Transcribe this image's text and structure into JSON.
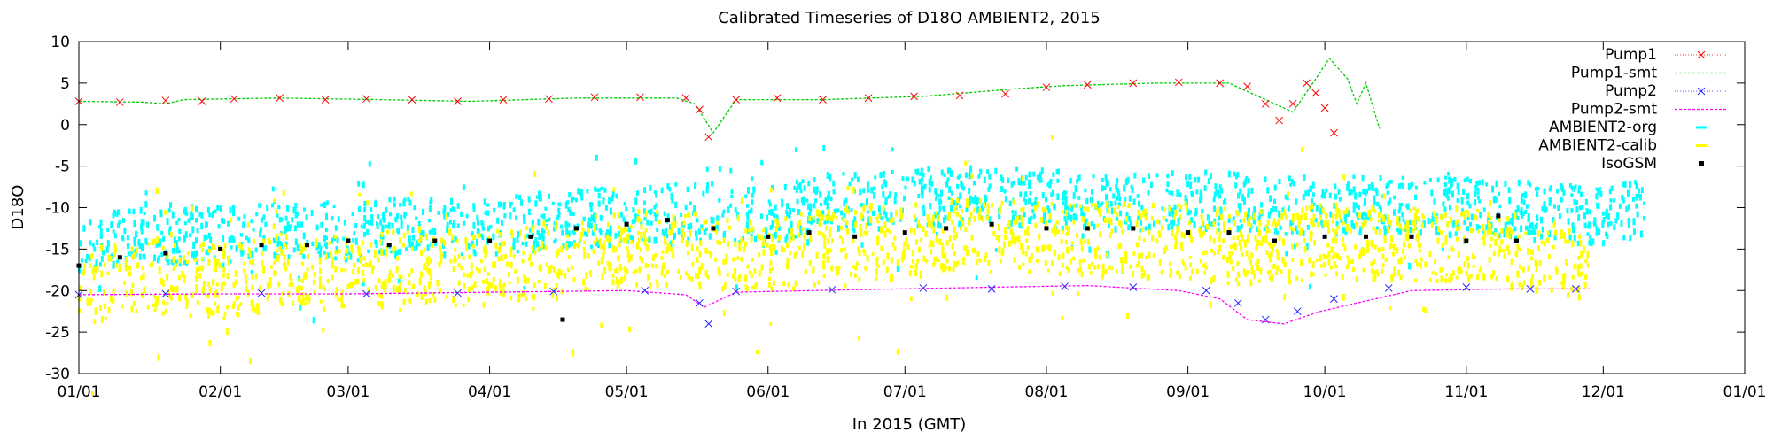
{
  "chart_data": {
    "type": "scatter",
    "title": "Calibrated Timeseries of D18O AMBIENT2, 2015",
    "xlabel": "In 2015 (GMT)",
    "ylabel": "D18O",
    "x_tick_labels": [
      "01/01",
      "02/01",
      "03/01",
      "04/01",
      "05/01",
      "06/01",
      "07/01",
      "08/01",
      "09/01",
      "10/01",
      "11/01",
      "12/01",
      "01/01"
    ],
    "x_tick_dates": [
      "2015-01-01",
      "2015-02-01",
      "2015-03-01",
      "2015-04-01",
      "2015-05-01",
      "2015-06-01",
      "2015-07-01",
      "2015-08-01",
      "2015-09-01",
      "2015-10-01",
      "2015-11-01",
      "2015-12-01",
      "2016-01-01"
    ],
    "xlim": [
      "2015-01-01",
      "2016-01-01"
    ],
    "ylim": [
      -30,
      10
    ],
    "y_ticks": [
      10,
      5,
      0,
      -5,
      -10,
      -15,
      -20,
      -25,
      -30
    ],
    "grid": false,
    "legend_position": "top-right",
    "series": [
      {
        "name": "Pump1",
        "color": "#ff0000",
        "marker": "x",
        "style": "points-errorbars",
        "points": [
          [
            "2015-01-01",
            2.8
          ],
          [
            "2015-01-10",
            2.7
          ],
          [
            "2015-01-20",
            2.9
          ],
          [
            "2015-01-28",
            2.8
          ],
          [
            "2015-02-04",
            3.1
          ],
          [
            "2015-02-14",
            3.2
          ],
          [
            "2015-02-24",
            3.0
          ],
          [
            "2015-03-05",
            3.1
          ],
          [
            "2015-03-15",
            3.0
          ],
          [
            "2015-03-25",
            2.8
          ],
          [
            "2015-04-04",
            3.0
          ],
          [
            "2015-04-14",
            3.1
          ],
          [
            "2015-04-24",
            3.3
          ],
          [
            "2015-05-04",
            3.3
          ],
          [
            "2015-05-14",
            3.2
          ],
          [
            "2015-05-17",
            1.8
          ],
          [
            "2015-05-19",
            -1.5
          ],
          [
            "2015-05-25",
            3.0
          ],
          [
            "2015-06-03",
            3.2
          ],
          [
            "2015-06-13",
            3.0
          ],
          [
            "2015-06-23",
            3.2
          ],
          [
            "2015-07-03",
            3.4
          ],
          [
            "2015-07-13",
            3.5
          ],
          [
            "2015-07-23",
            3.7
          ],
          [
            "2015-08-01",
            4.5
          ],
          [
            "2015-08-10",
            4.8
          ],
          [
            "2015-08-20",
            5.0
          ],
          [
            "2015-08-30",
            5.1
          ],
          [
            "2015-09-08",
            5.0
          ],
          [
            "2015-09-14",
            4.6
          ],
          [
            "2015-09-18",
            2.5
          ],
          [
            "2015-09-21",
            0.5
          ],
          [
            "2015-09-24",
            2.5
          ],
          [
            "2015-09-27",
            5.0
          ],
          [
            "2015-09-29",
            3.8
          ],
          [
            "2015-10-01",
            2.0
          ],
          [
            "2015-10-03",
            -1.0
          ]
        ]
      },
      {
        "name": "Pump1-smt",
        "color": "#00cc00",
        "marker": "none",
        "style": "dashed-line",
        "points": [
          [
            "2015-01-01",
            2.8
          ],
          [
            "2015-01-15",
            2.7
          ],
          [
            "2015-01-20",
            2.5
          ],
          [
            "2015-01-24",
            3.0
          ],
          [
            "2015-02-14",
            3.2
          ],
          [
            "2015-03-08",
            3.0
          ],
          [
            "2015-03-28",
            2.8
          ],
          [
            "2015-04-20",
            3.2
          ],
          [
            "2015-05-12",
            3.2
          ],
          [
            "2015-05-16",
            2.5
          ],
          [
            "2015-05-20",
            -1.0
          ],
          [
            "2015-05-25",
            3.0
          ],
          [
            "2015-06-13",
            3.0
          ],
          [
            "2015-07-05",
            3.4
          ],
          [
            "2015-07-25",
            4.3
          ],
          [
            "2015-08-05",
            4.7
          ],
          [
            "2015-08-25",
            5.0
          ],
          [
            "2015-09-10",
            5.0
          ],
          [
            "2015-09-18",
            3.0
          ],
          [
            "2015-09-24",
            1.5
          ],
          [
            "2015-09-29",
            5.5
          ],
          [
            "2015-10-02",
            8.0
          ],
          [
            "2015-10-06",
            5.5
          ],
          [
            "2015-10-08",
            2.5
          ],
          [
            "2015-10-10",
            5.0
          ],
          [
            "2015-10-13",
            -0.5
          ]
        ]
      },
      {
        "name": "Pump2",
        "color": "#2222ff",
        "marker": "x",
        "style": "points-errorbars",
        "points": [
          [
            "2015-01-01",
            -20.5
          ],
          [
            "2015-01-20",
            -20.4
          ],
          [
            "2015-02-10",
            -20.3
          ],
          [
            "2015-03-05",
            -20.4
          ],
          [
            "2015-03-25",
            -20.3
          ],
          [
            "2015-04-15",
            -20.1
          ],
          [
            "2015-05-05",
            -20.0
          ],
          [
            "2015-05-17",
            -21.5
          ],
          [
            "2015-05-19",
            -24.0
          ],
          [
            "2015-05-25",
            -20.1
          ],
          [
            "2015-06-15",
            -19.9
          ],
          [
            "2015-07-05",
            -19.7
          ],
          [
            "2015-07-20",
            -19.8
          ],
          [
            "2015-08-05",
            -19.5
          ],
          [
            "2015-08-20",
            -19.6
          ],
          [
            "2015-09-05",
            -20.0
          ],
          [
            "2015-09-12",
            -21.5
          ],
          [
            "2015-09-18",
            -23.5
          ],
          [
            "2015-09-25",
            -22.5
          ],
          [
            "2015-10-03",
            -21.0
          ],
          [
            "2015-10-15",
            -19.7
          ],
          [
            "2015-11-01",
            -19.6
          ],
          [
            "2015-11-15",
            -19.8
          ],
          [
            "2015-11-25",
            -19.8
          ]
        ]
      },
      {
        "name": "Pump2-smt",
        "color": "#ff00ff",
        "marker": "none",
        "style": "dashed-line",
        "points": [
          [
            "2015-01-01",
            -20.5
          ],
          [
            "2015-02-01",
            -20.4
          ],
          [
            "2015-03-01",
            -20.4
          ],
          [
            "2015-04-01",
            -20.2
          ],
          [
            "2015-05-01",
            -20.0
          ],
          [
            "2015-05-14",
            -20.5
          ],
          [
            "2015-05-18",
            -22.0
          ],
          [
            "2015-05-25",
            -20.2
          ],
          [
            "2015-06-20",
            -19.9
          ],
          [
            "2015-07-20",
            -19.6
          ],
          [
            "2015-08-10",
            -19.4
          ],
          [
            "2015-08-30",
            -20.0
          ],
          [
            "2015-09-08",
            -21.0
          ],
          [
            "2015-09-14",
            -23.5
          ],
          [
            "2015-09-22",
            -24.0
          ],
          [
            "2015-09-30",
            -22.5
          ],
          [
            "2015-10-08",
            -21.5
          ],
          [
            "2015-10-20",
            -20.0
          ],
          [
            "2015-11-10",
            -19.8
          ],
          [
            "2015-11-28",
            -19.8
          ]
        ]
      },
      {
        "name": "AMBIENT2-org",
        "color": "#00ffff",
        "marker": "dot",
        "style": "points",
        "points": [
          [
            "2015-01-01",
            -15.5
          ],
          [
            "2015-01-15",
            -13.0
          ],
          [
            "2015-02-01",
            -13.5
          ],
          [
            "2015-02-15",
            -12.5
          ],
          [
            "2015-03-01",
            -13.0
          ],
          [
            "2015-03-15",
            -12.0
          ],
          [
            "2015-04-01",
            -12.5
          ],
          [
            "2015-04-15",
            -11.5
          ],
          [
            "2015-05-01",
            -11.0
          ],
          [
            "2015-05-15",
            -10.5
          ],
          [
            "2015-06-01",
            -11.0
          ],
          [
            "2015-06-15",
            -9.5
          ],
          [
            "2015-07-01",
            -9.0
          ],
          [
            "2015-07-15",
            -8.5
          ],
          [
            "2015-08-01",
            -9.0
          ],
          [
            "2015-08-15",
            -9.5
          ],
          [
            "2015-09-01",
            -9.0
          ],
          [
            "2015-09-15",
            -9.5
          ],
          [
            "2015-10-01",
            -10.0
          ],
          [
            "2015-10-15",
            -9.5
          ],
          [
            "2015-11-01",
            -10.0
          ],
          [
            "2015-11-15",
            -10.5
          ],
          [
            "2015-12-01",
            -11.0
          ],
          [
            "2015-12-10",
            -10.0
          ]
        ]
      },
      {
        "name": "AMBIENT2-calib",
        "color": "#ffff00",
        "marker": "dot",
        "style": "points",
        "points": [
          [
            "2015-01-01",
            -20.0
          ],
          [
            "2015-01-15",
            -18.0
          ],
          [
            "2015-02-01",
            -19.0
          ],
          [
            "2015-02-15",
            -17.5
          ],
          [
            "2015-03-01",
            -18.0
          ],
          [
            "2015-03-15",
            -17.0
          ],
          [
            "2015-04-01",
            -17.5
          ],
          [
            "2015-04-15",
            -16.0
          ],
          [
            "2015-05-01",
            -15.0
          ],
          [
            "2015-05-15",
            -15.0
          ],
          [
            "2015-06-01",
            -16.0
          ],
          [
            "2015-06-15",
            -14.5
          ],
          [
            "2015-07-01",
            -14.0
          ],
          [
            "2015-07-15",
            -13.5
          ],
          [
            "2015-08-01",
            -13.5
          ],
          [
            "2015-08-15",
            -14.0
          ],
          [
            "2015-09-01",
            -14.0
          ],
          [
            "2015-09-15",
            -15.0
          ],
          [
            "2015-10-01",
            -14.0
          ],
          [
            "2015-10-15",
            -14.5
          ],
          [
            "2015-11-01",
            -14.5
          ],
          [
            "2015-11-15",
            -15.5
          ],
          [
            "2015-11-28",
            -17.0
          ]
        ]
      },
      {
        "name": "IsoGSM",
        "color": "#000000",
        "marker": "square",
        "style": "points",
        "points": [
          [
            "2015-01-01",
            -17.0
          ],
          [
            "2015-01-10",
            -16.0
          ],
          [
            "2015-01-20",
            -15.5
          ],
          [
            "2015-02-01",
            -15.0
          ],
          [
            "2015-02-10",
            -14.5
          ],
          [
            "2015-02-20",
            -14.5
          ],
          [
            "2015-03-01",
            -14.0
          ],
          [
            "2015-03-10",
            -14.5
          ],
          [
            "2015-03-20",
            -14.0
          ],
          [
            "2015-04-01",
            -14.0
          ],
          [
            "2015-04-10",
            -13.5
          ],
          [
            "2015-04-17",
            -23.5
          ],
          [
            "2015-04-20",
            -12.5
          ],
          [
            "2015-05-01",
            -12.0
          ],
          [
            "2015-05-10",
            -11.5
          ],
          [
            "2015-05-20",
            -12.5
          ],
          [
            "2015-06-01",
            -13.5
          ],
          [
            "2015-06-10",
            -13.0
          ],
          [
            "2015-06-20",
            -13.5
          ],
          [
            "2015-07-01",
            -13.0
          ],
          [
            "2015-07-10",
            -12.5
          ],
          [
            "2015-07-20",
            -12.0
          ],
          [
            "2015-08-01",
            -12.5
          ],
          [
            "2015-08-10",
            -12.5
          ],
          [
            "2015-08-20",
            -12.5
          ],
          [
            "2015-09-01",
            -13.0
          ],
          [
            "2015-09-10",
            -13.0
          ],
          [
            "2015-09-20",
            -14.0
          ],
          [
            "2015-10-01",
            -13.5
          ],
          [
            "2015-10-10",
            -13.5
          ],
          [
            "2015-10-20",
            -13.5
          ],
          [
            "2015-11-01",
            -14.0
          ],
          [
            "2015-11-08",
            -11.0
          ],
          [
            "2015-11-12",
            -14.0
          ]
        ]
      }
    ]
  }
}
